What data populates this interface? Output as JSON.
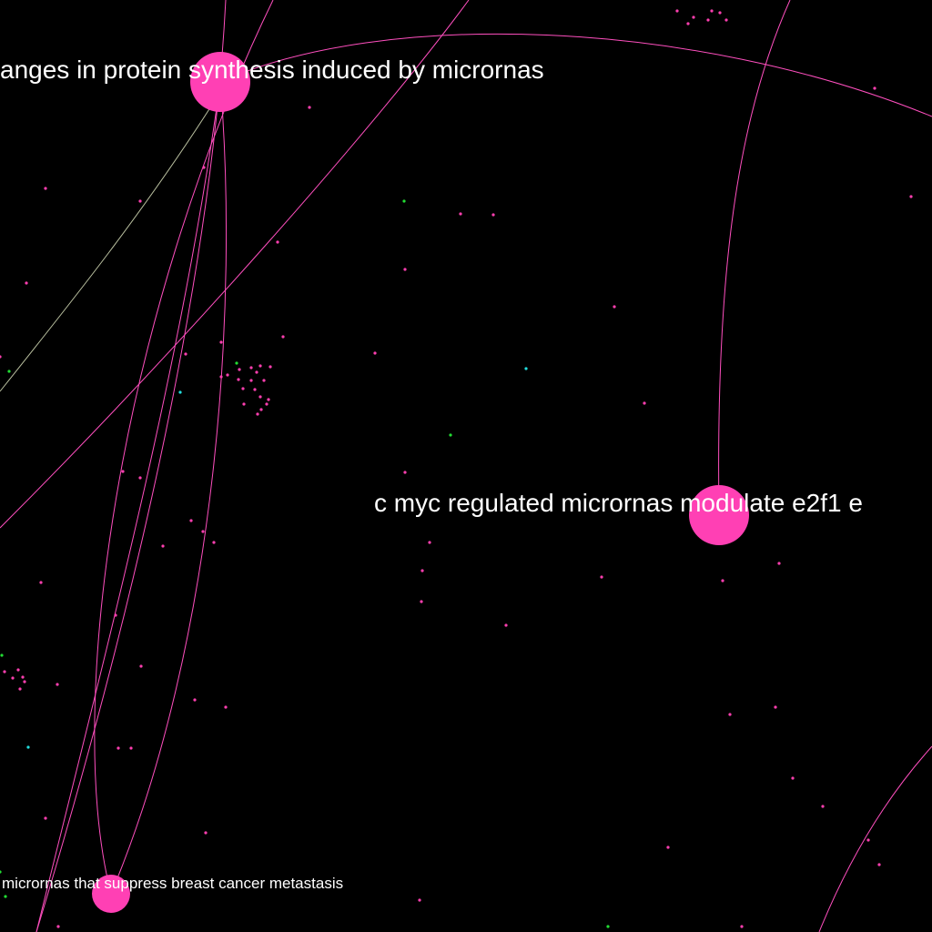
{
  "colors": {
    "background": "#000000",
    "node_major": "#ff40b4",
    "node_minor_pink": "#ff3fb0",
    "node_minor_green": "#22dd33",
    "node_minor_cyan": "#22dddd",
    "edge_pink": "#ff4fbf",
    "edge_pale": "#e8f0c8",
    "label": "#ffffff"
  },
  "nodes": {
    "protein_synthesis": {
      "label": "anges in protein synthesis induced by micrornas"
    },
    "cmyc": {
      "label": "c myc regulated micrornas modulate e2f1 e"
    },
    "breast_cancer": {
      "label": "micrornas that suppress breast cancer metastasis"
    }
  }
}
